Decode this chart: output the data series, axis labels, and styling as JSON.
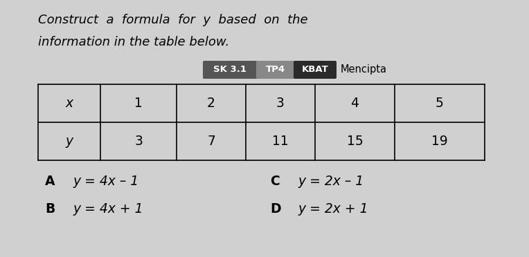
{
  "background_color": "#d0d0d0",
  "title_line1": "Construct  a  formula  for  y  based  on  the",
  "title_line2": "information in the table below.",
  "title_fontsize": 13.0,
  "sk_label": "SK 3.1",
  "tp_label": "TP4",
  "kbat_label": "KBAT",
  "mencipta_label": "Mencipta",
  "sk_bg": "#555555",
  "tp_bg": "#888888",
  "kbat_bg": "#2a2a2a",
  "table_x_values": [
    "x",
    "1",
    "2",
    "3",
    "4",
    "5"
  ],
  "table_y_values": [
    "y",
    "3",
    "7",
    "11",
    "15",
    "19"
  ],
  "options": [
    {
      "label": "A",
      "formula": "y = 4x – 1"
    },
    {
      "label": "B",
      "formula": "y = 4x + 1"
    },
    {
      "label": "C",
      "formula": "y = 2x – 1"
    },
    {
      "label": "D",
      "formula": "y = 2x + 1"
    }
  ],
  "option_fontsize": 13.5,
  "table_fontsize": 13.5,
  "badge_fontsize": 9.5,
  "mencipta_fontsize": 10.5
}
